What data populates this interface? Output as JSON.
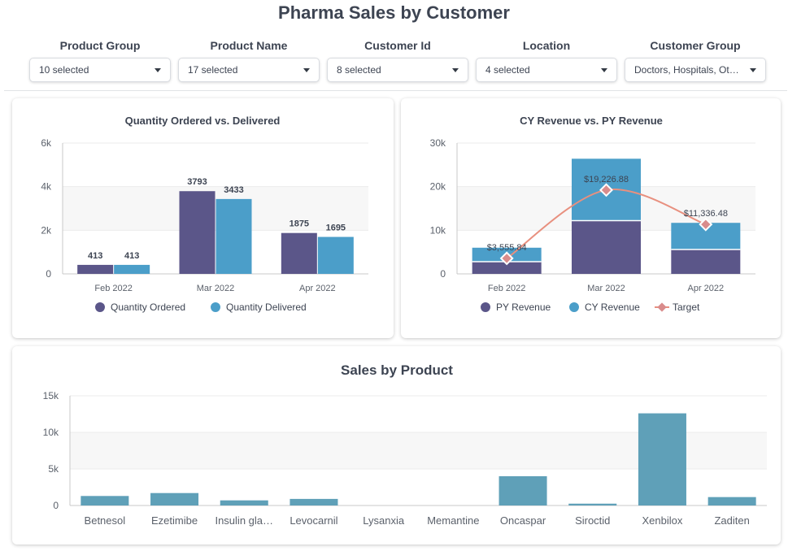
{
  "page": {
    "title": "Pharma Sales by Customer"
  },
  "filters": [
    {
      "label": "Product Group",
      "value": "10 selected"
    },
    {
      "label": "Product Name",
      "value": "17 selected"
    },
    {
      "label": "Customer Id",
      "value": "8 selected"
    },
    {
      "label": "Location",
      "value": "4 selected"
    },
    {
      "label": "Customer Group",
      "value": "Doctors, Hospitals, Ot…"
    }
  ],
  "colors": {
    "ordered": "#5b5689",
    "delivered": "#4b9ec9",
    "py": "#5b5689",
    "cy": "#4b9ec9",
    "target": "#e8907f",
    "target_marker": "#d98c8c",
    "product": "#5fa0b8",
    "grid": "#ebebeb",
    "band": "#f7f7f7",
    "axis": "#c8c8c8"
  },
  "chart_data": [
    {
      "type": "bar",
      "title": "Quantity Ordered vs. Delivered",
      "categories": [
        "Feb 2022",
        "Mar 2022",
        "Apr 2022"
      ],
      "series": [
        {
          "name": "Quantity Ordered",
          "values": [
            413,
            3793,
            1875
          ]
        },
        {
          "name": "Quantity Delivered",
          "values": [
            413,
            3433,
            1695
          ]
        }
      ],
      "data_labels": [
        [
          "413",
          "3793",
          "1875"
        ],
        [
          "413",
          "3433",
          "1695"
        ]
      ],
      "ylim": [
        0,
        6000
      ],
      "yticks": [
        0,
        2000,
        4000,
        6000
      ],
      "ytick_labels": [
        "0",
        "2k",
        "4k",
        "6k"
      ],
      "grid": true,
      "legend": "bottom"
    },
    {
      "type": "bar",
      "title": "CY Revenue vs. PY Revenue",
      "stacked": true,
      "categories": [
        "Feb 2022",
        "Mar 2022",
        "Apr 2022"
      ],
      "series": [
        {
          "name": "PY Revenue",
          "values": [
            2800,
            12200,
            5600
          ]
        },
        {
          "name": "CY Revenue",
          "values": [
            3200,
            14200,
            6100
          ]
        },
        {
          "name": "Target",
          "type": "line",
          "values": [
            3555.84,
            19226.88,
            11336.48
          ]
        }
      ],
      "target_labels": [
        "$3,555.84",
        "$19,226.88",
        "$11,336.48"
      ],
      "ylim": [
        0,
        30000
      ],
      "yticks": [
        0,
        10000,
        20000,
        30000
      ],
      "ytick_labels": [
        "0",
        "10k",
        "20k",
        "30k"
      ],
      "grid": true,
      "legend": "bottom"
    },
    {
      "type": "bar",
      "title": "Sales by Product",
      "categories": [
        "Betnesol",
        "Ezetimibe",
        "Insulin gla…",
        "Levocarnil",
        "Lysanxia",
        "Memantine",
        "Oncaspar",
        "Siroctid",
        "Xenbilox",
        "Zaditen"
      ],
      "values": [
        1300,
        1700,
        700,
        900,
        0,
        0,
        4000,
        250,
        12600,
        1150
      ],
      "ylim": [
        0,
        15000
      ],
      "yticks": [
        0,
        5000,
        10000,
        15000
      ],
      "ytick_labels": [
        "0",
        "5k",
        "10k",
        "15k"
      ],
      "grid": true
    }
  ]
}
